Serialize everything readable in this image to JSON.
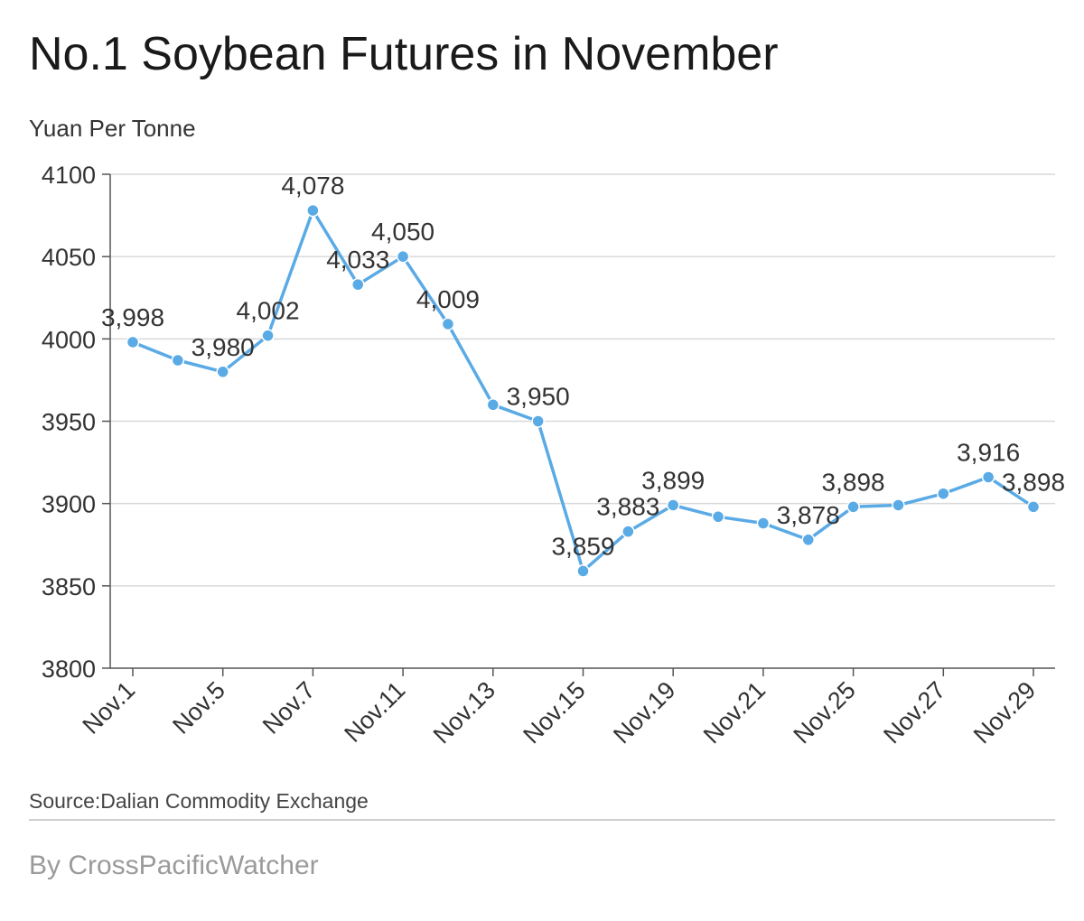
{
  "header": {
    "title": "No.1 Soybean Futures in November",
    "unit": "Yuan Per Tonne"
  },
  "footer": {
    "source": "Source:Dalian Commodity Exchange",
    "byline": "By CrossPacificWatcher"
  },
  "colors": {
    "line": "#5aaae6",
    "grid": "#d9d9d9",
    "axis": "#555555"
  },
  "chart_data": {
    "type": "line",
    "title": "No.1 Soybean Futures in November",
    "ylabel": "Yuan Per Tonne",
    "xlabel": "",
    "ylim": [
      3800,
      4100
    ],
    "yticks": [
      "3800",
      "3850",
      "3900",
      "3950",
      "4000",
      "4050",
      "4100"
    ],
    "xtick_labels": [
      "Nov.1",
      "Nov.5",
      "Nov.7",
      "Nov.11",
      "Nov.13",
      "Nov.15",
      "Nov.19",
      "Nov.21",
      "Nov.25",
      "Nov.27",
      "Nov.29"
    ],
    "grid": true,
    "series": [
      {
        "values": [
          3998,
          3987,
          3980,
          4002,
          4078,
          4033,
          4050,
          4009,
          3960,
          3950,
          3859,
          3883,
          3899,
          3892,
          3888,
          3878,
          3898,
          3899,
          3906,
          3916,
          3898
        ],
        "data_labels": [
          "3,998",
          "",
          "3,980",
          "4,002",
          "4,078",
          "4,033",
          "4,050",
          "4,009",
          "",
          "3,950",
          "3,859",
          "3,883",
          "3,899",
          "",
          "",
          "3,878",
          "3,898",
          "",
          "",
          "3,916",
          "3,898"
        ]
      }
    ]
  }
}
